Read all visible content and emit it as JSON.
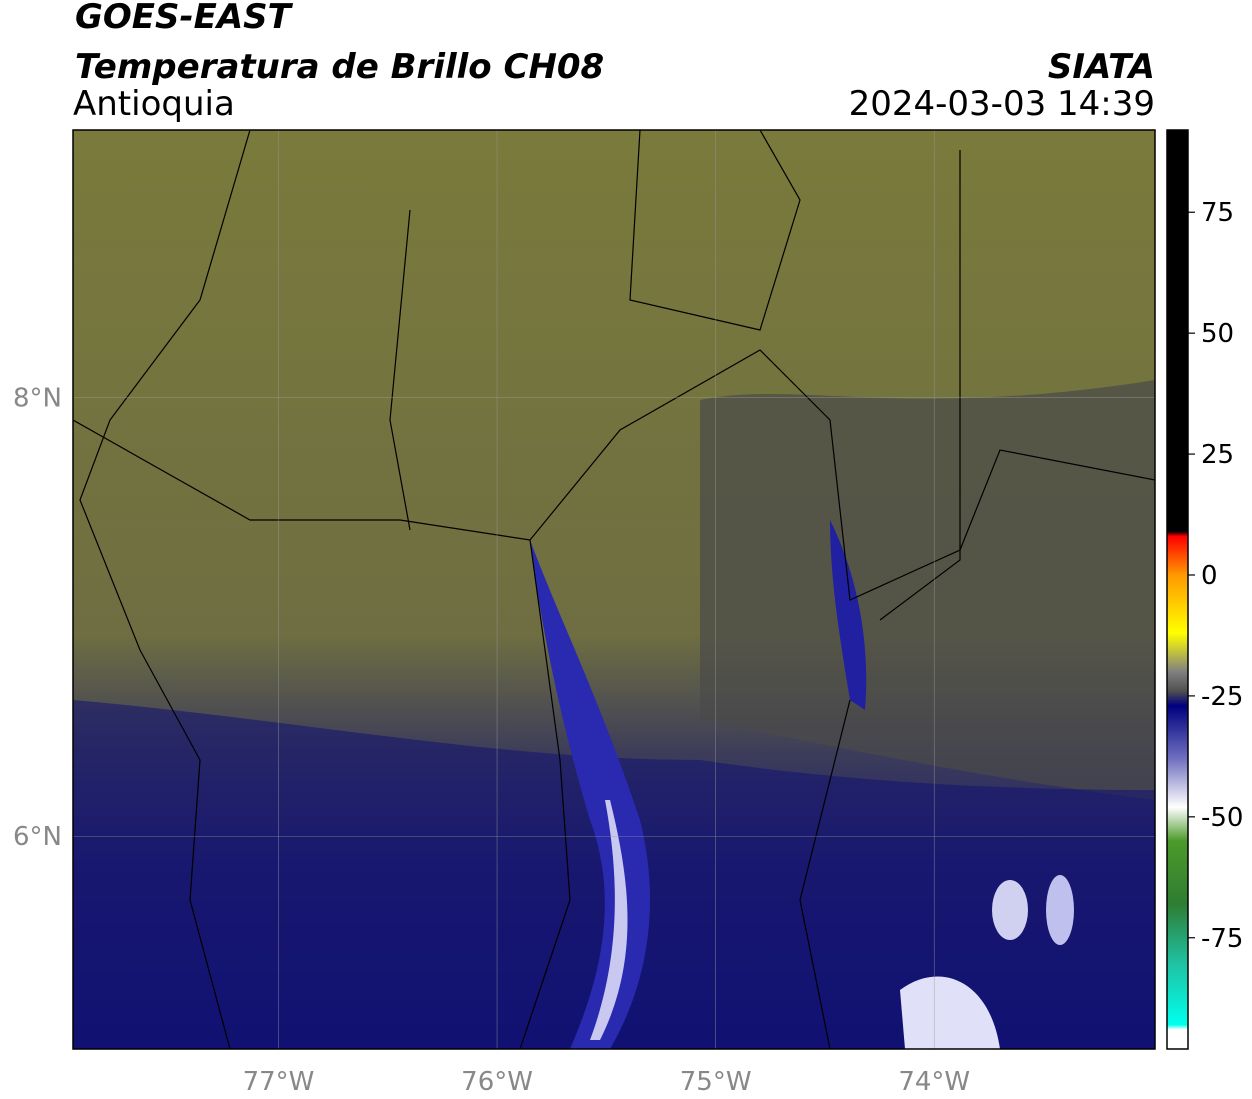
{
  "header": {
    "title": "GOES-EAST",
    "subtitle": "Temperatura de Brillo CH08",
    "region": "Antioquia",
    "source": "SIATA",
    "datetime": "2024-03-03 14:39"
  },
  "map": {
    "lon_range": [
      -77.94,
      -72.99
    ],
    "lat_range": [
      5.03,
      9.22
    ],
    "grid": true,
    "lon_ticks": [
      {
        "value": -77,
        "label": "77°W"
      },
      {
        "value": -76,
        "label": "76°W"
      },
      {
        "value": -75,
        "label": "75°W"
      },
      {
        "value": -74,
        "label": "74°W"
      }
    ],
    "lat_ticks": [
      {
        "value": 8,
        "label": "8°N"
      },
      {
        "value": 6,
        "label": "6°N"
      }
    ]
  },
  "colorbar": {
    "range": [
      -98,
      92
    ],
    "ticks": [
      75,
      50,
      25,
      0,
      -25,
      -50,
      -75
    ],
    "colormap": [
      {
        "value": 92,
        "color": "#000000"
      },
      {
        "value": 9,
        "color": "#000000"
      },
      {
        "value": 8,
        "color": "#ff0000"
      },
      {
        "value": 0,
        "color": "#ff9900"
      },
      {
        "value": -12,
        "color": "#ffff00"
      },
      {
        "value": -20,
        "color": "#808080"
      },
      {
        "value": -24,
        "color": "#505050"
      },
      {
        "value": -27,
        "color": "#000080"
      },
      {
        "value": -38,
        "color": "#7070c0"
      },
      {
        "value": -48,
        "color": "#ffffff"
      },
      {
        "value": -55,
        "color": "#4c9a2a"
      },
      {
        "value": -68,
        "color": "#2e7d32"
      },
      {
        "value": -80,
        "color": "#20c0a0"
      },
      {
        "value": -93,
        "color": "#00ffee"
      },
      {
        "value": -94,
        "color": "#ffffff"
      },
      {
        "value": -98,
        "color": "#ffffff"
      }
    ]
  }
}
